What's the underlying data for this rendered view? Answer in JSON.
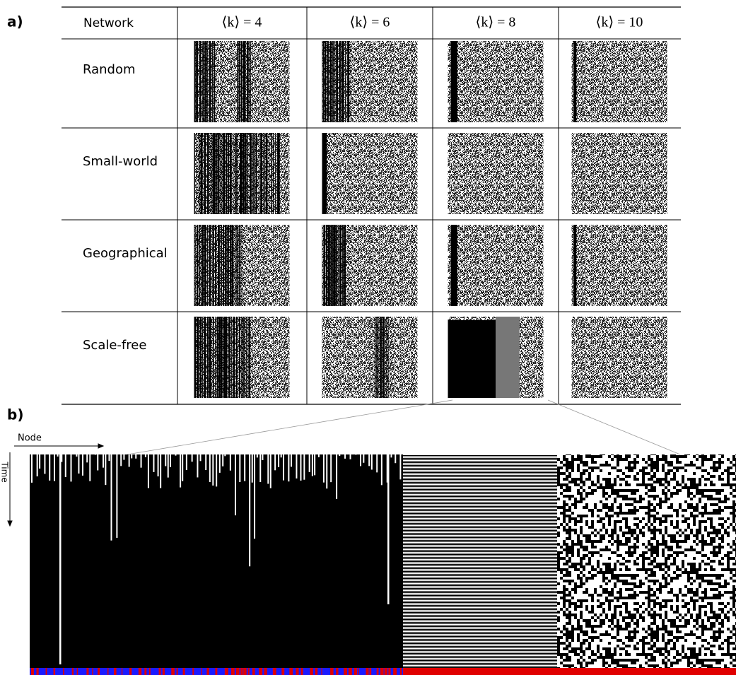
{
  "panel_labels": {
    "a": "a)",
    "b": "b)"
  },
  "table": {
    "header": [
      "Network",
      "⟨k⟩ = 4",
      "⟨k⟩ = 6",
      "⟨k⟩ = 8",
      "⟨k⟩ = 10"
    ],
    "rows": [
      "Random",
      "Small-world",
      "Geographical",
      "Scale-free"
    ]
  },
  "panel_b": {
    "x_axis": "Node",
    "y_axis": "Time"
  }
}
